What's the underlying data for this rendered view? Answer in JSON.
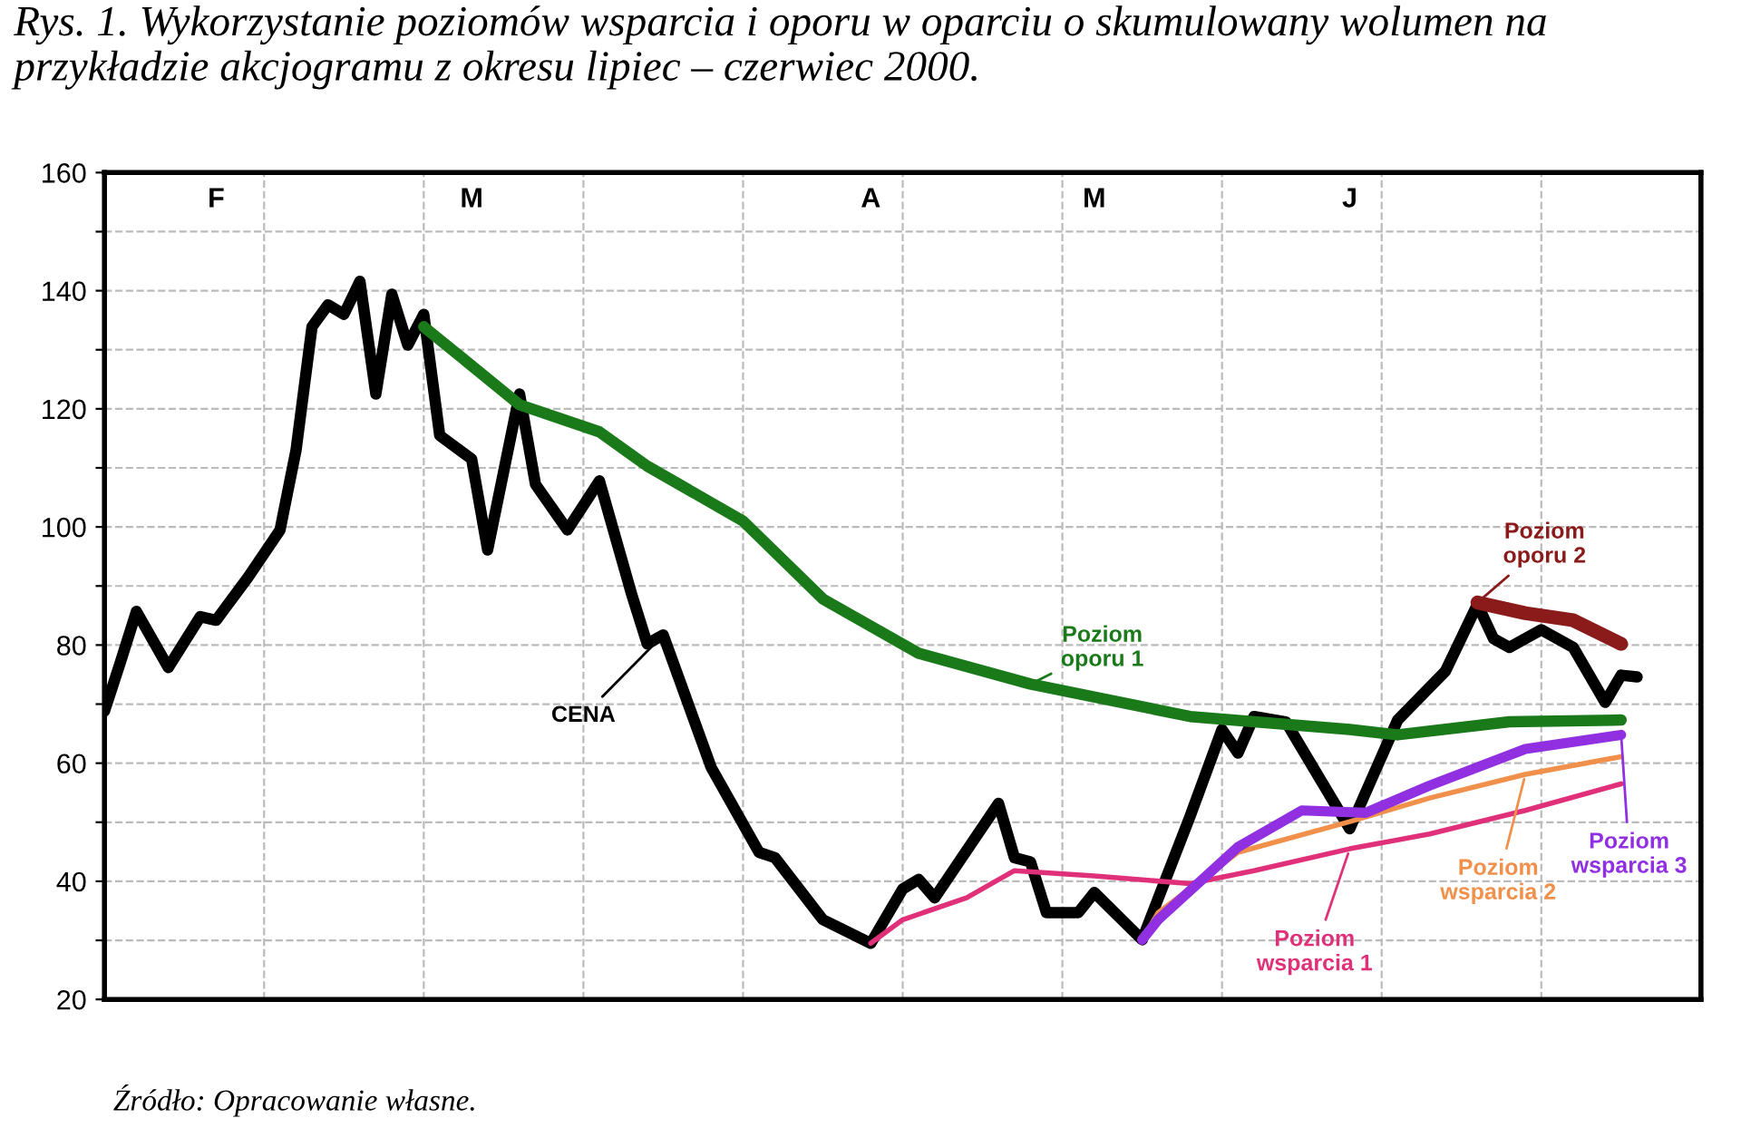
{
  "chart_data": {
    "type": "line",
    "title": "Rys. 1. Wykorzystanie poziomów wsparcia i oporu w oparciu o skumulowany wolumen na przykładzie akcjogramu z okresu lipiec – czerwiec 2000.",
    "annotations": [
      "Źródło: Opracowanie własne."
    ],
    "categories": [
      null,
      null,
      null,
      null,
      null,
      null,
      null,
      "F",
      null,
      null,
      null,
      null,
      null,
      null,
      null,
      null,
      null,
      null,
      null,
      null,
      null,
      null,
      null,
      "M",
      null,
      null,
      null,
      null,
      null,
      null,
      null,
      null,
      null,
      null,
      null,
      null,
      null,
      null,
      null,
      null,
      null,
      null,
      null,
      null,
      null,
      null,
      null,
      null,
      "A",
      null,
      null,
      null,
      null,
      null,
      null,
      null,
      null,
      null,
      null,
      null,
      null,
      null,
      "M",
      null,
      null,
      null,
      null,
      null,
      null,
      null,
      null,
      null,
      null,
      null,
      null,
      null,
      null,
      null,
      "J",
      null,
      null,
      null,
      null,
      null,
      null,
      null,
      null,
      null,
      null,
      null,
      null,
      null,
      null,
      null,
      null,
      null,
      null,
      null,
      null,
      null,
      null
    ],
    "ylim": [
      20,
      160
    ],
    "yticks": [
      20,
      {
        "value": 30,
        "label": null
      },
      40,
      {
        "value": 50,
        "label": null
      },
      60,
      {
        "value": 70,
        "label": null
      },
      80,
      {
        "value": 90,
        "label": null
      },
      100,
      {
        "value": 110,
        "label": null
      },
      120,
      {
        "value": 130,
        "label": null
      },
      140,
      {
        "value": 150,
        "label": null
      },
      160
    ],
    "grid": true,
    "series": [
      {
        "name": "CENA",
        "color": "#000000",
        "values": [
          68.8,
          77.1,
          85.7,
          null,
          76.2,
          null,
          84.8,
          84.2,
          null,
          91.5,
          null,
          99.5,
          113,
          133.9,
          137.6,
          136.0,
          141.6,
          122.5,
          139.4,
          130.8,
          136.0,
          115.5,
          null,
          111.5,
          96.1,
          null,
          122.5,
          107.2,
          null,
          99.5,
          null,
          107.8,
          null,
          88.8,
          80.2,
          81.7,
          null,
          null,
          59.3,
          null,
          null,
          44.9,
          44.0,
          null,
          null,
          33.5,
          null,
          null,
          29.5,
          null,
          38.7,
          40.3,
          37.2,
          null,
          null,
          null,
          53.2,
          44.0,
          43.3,
          34.7,
          null,
          34.7,
          38.1,
          null,
          null,
          30.1,
          null,
          null,
          51.0,
          null,
          65.7,
          61.7,
          67.9,
          null,
          67.0,
          null,
          null,
          null,
          48.9,
          null,
          null,
          67.3,
          null,
          null,
          75.6,
          null,
          86.9,
          81.1,
          79.6,
          null,
          82.6,
          null,
          79.6,
          null,
          70.3,
          74.9,
          74.6,
          null,
          null,
          null,
          null
        ]
      },
      {
        "name": "Poziom\noporu 1",
        "color": "#1a7a1a",
        "values": [
          null,
          null,
          null,
          null,
          null,
          null,
          null,
          null,
          null,
          null,
          null,
          null,
          null,
          null,
          null,
          null,
          null,
          null,
          null,
          null,
          133.9,
          null,
          null,
          null,
          null,
          null,
          120.7,
          null,
          null,
          null,
          null,
          116.1,
          null,
          null,
          110.3,
          null,
          null,
          null,
          null,
          null,
          101.0,
          null,
          null,
          null,
          null,
          87.8,
          null,
          null,
          null,
          null,
          null,
          78.6,
          null,
          null,
          null,
          null,
          null,
          null,
          73.4,
          null,
          null,
          null,
          null,
          null,
          null,
          null,
          null,
          null,
          67.9,
          null,
          null,
          null,
          null,
          null,
          null,
          null,
          null,
          null,
          65.7,
          null,
          null,
          64.8,
          null,
          null,
          null,
          null,
          null,
          null,
          67.0,
          null,
          null,
          null,
          null,
          null,
          null,
          67.3,
          null,
          null,
          null,
          null,
          null
        ]
      },
      {
        "name": "Poziom\noporu 2",
        "color": "#8b1a1a",
        "values": [
          null,
          null,
          null,
          null,
          null,
          null,
          null,
          null,
          null,
          null,
          null,
          null,
          null,
          null,
          null,
          null,
          null,
          null,
          null,
          null,
          null,
          null,
          null,
          null,
          null,
          null,
          null,
          null,
          null,
          null,
          null,
          null,
          null,
          null,
          null,
          null,
          null,
          null,
          null,
          null,
          null,
          null,
          null,
          null,
          null,
          null,
          null,
          null,
          null,
          null,
          null,
          null,
          null,
          null,
          null,
          null,
          null,
          null,
          null,
          null,
          null,
          null,
          null,
          null,
          null,
          null,
          null,
          null,
          null,
          null,
          null,
          null,
          null,
          null,
          null,
          null,
          null,
          null,
          null,
          null,
          null,
          null,
          null,
          null,
          null,
          null,
          87.2,
          null,
          null,
          85.4,
          null,
          null,
          84.2,
          null,
          null,
          80.2,
          null,
          null,
          null,
          null,
          null
        ]
      },
      {
        "name": "Poziom\nwsparcia 1",
        "color": "#e0307a",
        "values": [
          null,
          null,
          null,
          null,
          null,
          null,
          null,
          null,
          null,
          null,
          null,
          null,
          null,
          null,
          null,
          null,
          null,
          null,
          null,
          null,
          null,
          null,
          null,
          null,
          null,
          null,
          null,
          null,
          null,
          null,
          null,
          null,
          null,
          null,
          null,
          null,
          null,
          null,
          null,
          null,
          null,
          null,
          null,
          null,
          null,
          null,
          null,
          null,
          29.5,
          null,
          33.5,
          null,
          null,
          null,
          37.2,
          null,
          null,
          41.8,
          null,
          null,
          null,
          null,
          40.9,
          null,
          null,
          null,
          null,
          null,
          39.6,
          null,
          null,
          null,
          41.8,
          null,
          null,
          null,
          null,
          null,
          45.5,
          null,
          null,
          null,
          null,
          48.0,
          null,
          null,
          null,
          null,
          null,
          52.0,
          null,
          null,
          null,
          null,
          null,
          56.5,
          null,
          null,
          null,
          null,
          null
        ]
      },
      {
        "name": "Poziom\nwsparcia 2",
        "color": "#f0904a",
        "values": [
          null,
          null,
          null,
          null,
          null,
          null,
          null,
          null,
          null,
          null,
          null,
          null,
          null,
          null,
          null,
          null,
          null,
          null,
          null,
          null,
          null,
          null,
          null,
          null,
          null,
          null,
          null,
          null,
          null,
          null,
          null,
          null,
          null,
          null,
          null,
          null,
          null,
          null,
          null,
          null,
          null,
          null,
          null,
          null,
          null,
          null,
          null,
          null,
          null,
          null,
          null,
          null,
          null,
          null,
          null,
          null,
          null,
          null,
          null,
          null,
          null,
          null,
          null,
          null,
          null,
          30.1,
          34.7,
          null,
          null,
          null,
          null,
          44.9,
          null,
          null,
          null,
          null,
          null,
          null,
          50.1,
          null,
          null,
          null,
          null,
          54.1,
          null,
          null,
          null,
          null,
          null,
          58.1,
          null,
          null,
          null,
          null,
          null,
          61.1,
          null,
          null,
          null,
          null,
          null
        ]
      },
      {
        "name": "Poziom\nwsparcia 3",
        "color": "#9030e0",
        "values": [
          null,
          null,
          null,
          null,
          null,
          null,
          null,
          null,
          null,
          null,
          null,
          null,
          null,
          null,
          null,
          null,
          null,
          null,
          null,
          null,
          null,
          null,
          null,
          null,
          null,
          null,
          null,
          null,
          null,
          null,
          null,
          null,
          null,
          null,
          null,
          null,
          null,
          null,
          null,
          null,
          null,
          null,
          null,
          null,
          null,
          null,
          null,
          null,
          null,
          null,
          null,
          null,
          null,
          null,
          null,
          null,
          null,
          null,
          null,
          null,
          null,
          null,
          null,
          null,
          null,
          30.1,
          33.5,
          null,
          null,
          null,
          null,
          45.8,
          null,
          null,
          null,
          52.0,
          null,
          null,
          null,
          51.6,
          null,
          null,
          null,
          56.2,
          null,
          null,
          null,
          null,
          null,
          62.4,
          null,
          null,
          null,
          null,
          null,
          64.8,
          null,
          null,
          null,
          null,
          null
        ]
      }
    ]
  }
}
